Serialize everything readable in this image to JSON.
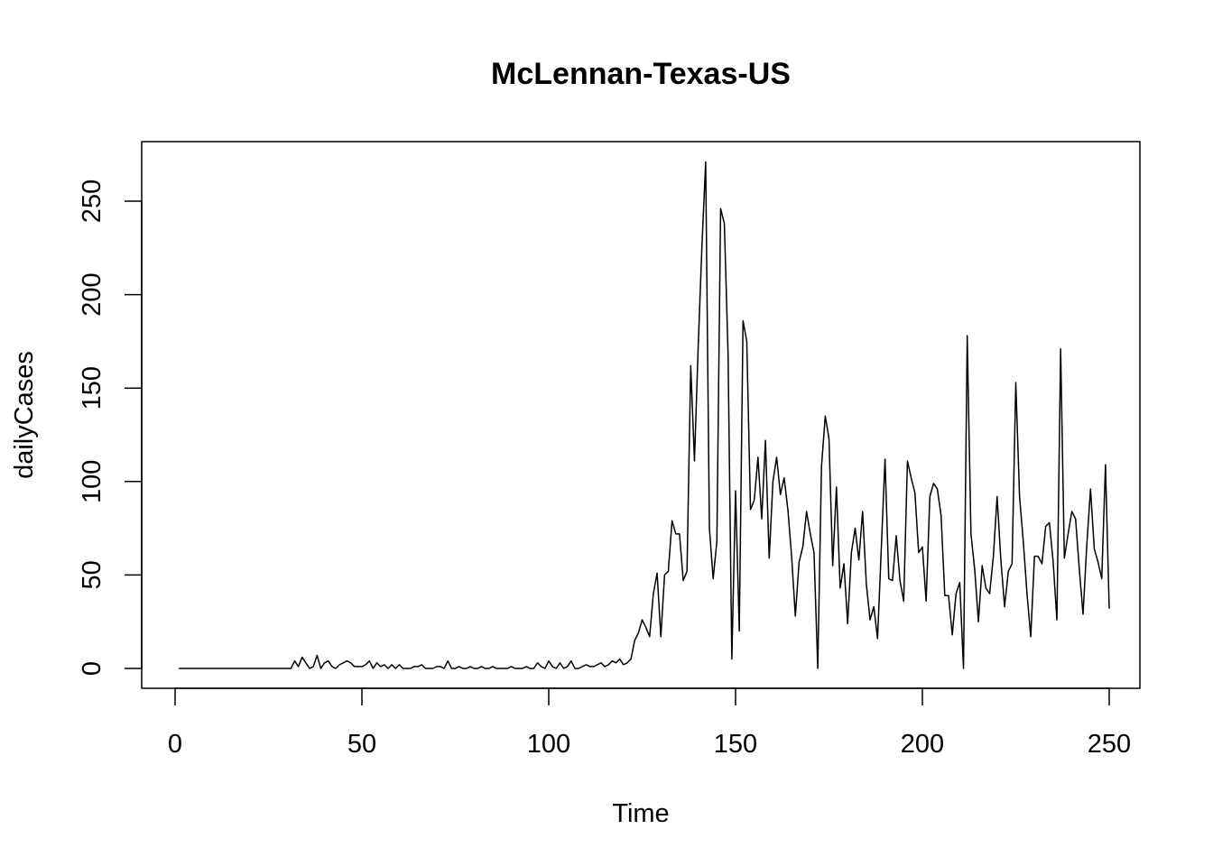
{
  "chart_data": {
    "type": "line",
    "title": "McLennan-Texas-US",
    "xlabel": "Time",
    "ylabel": "dailyCases",
    "xlim": [
      0,
      250
    ],
    "ylim": [
      0,
      270
    ],
    "x_ticks": [
      0,
      50,
      100,
      150,
      200,
      250
    ],
    "y_ticks": [
      0,
      50,
      100,
      150,
      200,
      250
    ],
    "grid": false,
    "legend": "none",
    "series": [
      {
        "color": "#000000",
        "x_start": 1,
        "values": [
          0,
          0,
          0,
          0,
          0,
          0,
          0,
          0,
          0,
          0,
          0,
          0,
          0,
          0,
          0,
          0,
          0,
          0,
          0,
          0,
          0,
          0,
          0,
          0,
          0,
          0,
          0,
          0,
          0,
          0,
          0,
          4,
          1,
          6,
          3,
          0,
          1,
          7,
          0,
          3,
          4,
          1,
          0,
          2,
          3,
          4,
          3,
          1,
          1,
          1,
          2,
          4,
          0,
          3,
          1,
          2,
          0,
          2,
          0,
          2,
          0,
          0,
          0,
          1,
          1,
          2,
          0,
          0,
          0,
          1,
          1,
          0,
          4,
          0,
          0,
          1,
          0,
          0,
          1,
          0,
          0,
          1,
          0,
          0,
          1,
          0,
          0,
          0,
          0,
          1,
          0,
          0,
          0,
          1,
          0,
          0,
          3,
          1,
          0,
          4,
          1,
          0,
          3,
          0,
          1,
          4,
          0,
          0,
          1,
          2,
          1,
          1,
          2,
          3,
          1,
          2,
          4,
          3,
          5,
          2,
          3,
          5,
          15,
          19,
          26,
          22,
          17,
          40,
          51,
          17,
          50,
          52,
          79,
          72,
          72,
          47,
          52,
          162,
          111,
          172,
          226,
          271,
          75,
          48,
          68,
          246,
          238,
          168,
          5,
          95,
          20,
          186,
          175,
          85,
          90,
          113,
          80,
          122,
          59,
          100,
          113,
          93,
          102,
          85,
          60,
          28,
          57,
          65,
          84,
          72,
          62,
          0,
          108,
          135,
          123,
          55,
          97,
          43,
          56,
          24,
          62,
          75,
          58,
          84,
          45,
          26,
          33,
          16,
          64,
          112,
          48,
          47,
          71,
          47,
          36,
          111,
          102,
          94,
          62,
          65,
          36,
          92,
          99,
          96,
          82,
          39,
          39,
          18,
          40,
          46,
          0,
          178,
          72,
          53,
          25,
          55,
          43,
          40,
          60,
          92,
          58,
          33,
          52,
          56,
          153,
          92,
          68,
          40,
          17,
          60,
          60,
          56,
          76,
          78,
          57,
          26,
          171,
          59,
          72,
          84,
          80,
          53,
          29,
          66,
          96,
          64,
          57,
          48,
          109,
          32
        ]
      }
    ]
  }
}
